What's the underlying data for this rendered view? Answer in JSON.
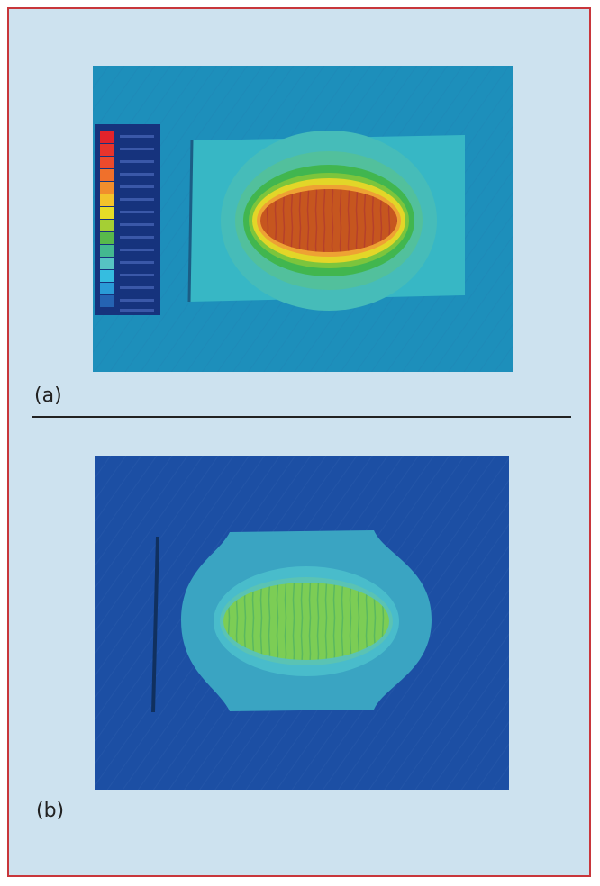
{
  "panels": [
    {
      "label": "(a)"
    },
    {
      "label": "(b)"
    }
  ],
  "colors": {
    "frame_border": "#c8363b",
    "frame_background": "#cde2ef",
    "legend_scale": [
      "#e2232b",
      "#e8342c",
      "#ec4a2c",
      "#f0702b",
      "#f18e2c",
      "#f3c32b",
      "#e6dd27",
      "#a5cf34",
      "#58b94b",
      "#43b890",
      "#56c3c3",
      "#35bde0",
      "#2a9bd7",
      "#2563b2",
      "#1c3c8f",
      "#14296f"
    ]
  }
}
